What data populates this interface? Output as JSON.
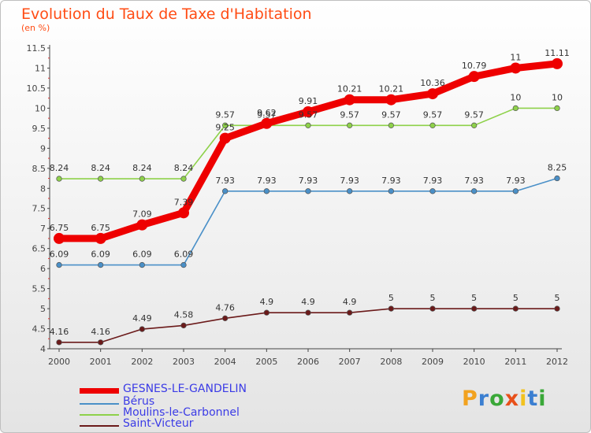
{
  "title": "Evolution du Taux de Taxe d'Habitation",
  "subtitle": "(en %)",
  "colors": {
    "title": "#ff4c14",
    "axis": "#444444",
    "grid": "#e6e6e6"
  },
  "logo": {
    "text": "Proxiti",
    "letter_colors": [
      "#f2a21f",
      "#3b7fd1",
      "#3aa838",
      "#e8501a",
      "#f2c21f",
      "#3b7fd1",
      "#3aa838"
    ]
  },
  "chart_data": {
    "type": "line",
    "title": "Evolution du Taux de Taxe d'Habitation",
    "subtitle": "(en %)",
    "xlabel": "",
    "ylabel": "",
    "x": [
      "2000",
      "2001",
      "2002",
      "2003",
      "2004",
      "2005",
      "2006",
      "2007",
      "2008",
      "2009",
      "2010",
      "2011",
      "2012"
    ],
    "ylim": [
      4,
      11.5
    ],
    "yticks": [
      4,
      4.5,
      5,
      5.5,
      6,
      6.5,
      7,
      7.5,
      8,
      8.5,
      9,
      9.5,
      10,
      10.5,
      11,
      11.5
    ],
    "grid": false,
    "legend_position": "bottom-left",
    "series": [
      {
        "name": "GESNES-LE-GANDELIN",
        "color": "#ee0000",
        "values": [
          6.75,
          6.75,
          7.09,
          7.39,
          9.25,
          9.62,
          9.91,
          10.21,
          10.21,
          10.36,
          10.79,
          11,
          11.11
        ],
        "labels": [
          "6.75",
          "6.75",
          "7.09",
          "7.39",
          "9.25",
          "9.62",
          "9.91",
          "10.21",
          "10.21",
          "10.36",
          "10.79",
          "11",
          "11.11"
        ]
      },
      {
        "name": "Bérus",
        "color": "#4a90c8",
        "values": [
          6.09,
          6.09,
          6.09,
          6.09,
          7.93,
          7.93,
          7.93,
          7.93,
          7.93,
          7.93,
          7.93,
          7.93,
          8.25
        ],
        "labels": [
          "6.09",
          "6.09",
          "6.09",
          "6.09",
          "7.93",
          "7.93",
          "7.93",
          "7.93",
          "7.93",
          "7.93",
          "7.93",
          "7.93",
          "8.25"
        ]
      },
      {
        "name": "Moulins-le-Carbonnel",
        "color": "#8ed14a",
        "values": [
          8.24,
          8.24,
          8.24,
          8.24,
          9.57,
          9.57,
          9.57,
          9.57,
          9.57,
          9.57,
          9.57,
          10,
          10
        ],
        "labels": [
          "8.24",
          "8.24",
          "8.24",
          "8.24",
          "9.57",
          "9.57",
          "9.57",
          "9.57",
          "9.57",
          "9.57",
          "9.57",
          "10",
          "10"
        ]
      },
      {
        "name": "Saint-Victeur",
        "color": "#6b1a1a",
        "values": [
          4.16,
          4.16,
          4.49,
          4.58,
          4.76,
          4.9,
          4.9,
          4.9,
          5,
          5,
          5,
          5,
          5
        ],
        "labels": [
          "4.16",
          "4.16",
          "4.49",
          "4.58",
          "4.76",
          "4.9",
          "4.9",
          "4.9",
          "5",
          "5",
          "5",
          "5",
          "5"
        ]
      }
    ]
  }
}
